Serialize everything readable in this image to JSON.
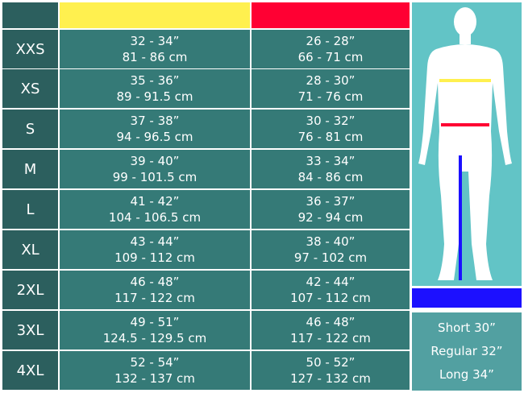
{
  "colors": {
    "chest": "#fff04f",
    "waist": "#ff0033",
    "inseam": "#1c10ff"
  },
  "rows": [
    {
      "size": "XXS",
      "chest_in": "32 - 34”",
      "chest_cm": "81 - 86 cm",
      "waist_in": "26 - 28”",
      "waist_cm": "66 - 71 cm"
    },
    {
      "size": "XS",
      "chest_in": "35 - 36”",
      "chest_cm": "89 - 91.5 cm",
      "waist_in": "28 - 30”",
      "waist_cm": "71 - 76 cm"
    },
    {
      "size": "S",
      "chest_in": "37 - 38”",
      "chest_cm": "94 - 96.5 cm",
      "waist_in": "30 - 32”",
      "waist_cm": "76 - 81 cm"
    },
    {
      "size": "M",
      "chest_in": "39 - 40”",
      "chest_cm": "99 - 101.5 cm",
      "waist_in": "33 - 34”",
      "waist_cm": "84 - 86 cm"
    },
    {
      "size": "L",
      "chest_in": "41 - 42”",
      "chest_cm": "104 - 106.5 cm",
      "waist_in": "36 - 37”",
      "waist_cm": "92 - 94 cm"
    },
    {
      "size": "XL",
      "chest_in": "43 - 44”",
      "chest_cm": "109 - 112 cm",
      "waist_in": "38 - 40”",
      "waist_cm": "97 - 102 cm"
    },
    {
      "size": "2XL",
      "chest_in": "46 - 48”",
      "chest_cm": "117 - 122 cm",
      "waist_in": "42 - 44”",
      "waist_cm": "107 - 112 cm"
    },
    {
      "size": "3XL",
      "chest_in": "49 - 51”",
      "chest_cm": "124.5 - 129.5 cm",
      "waist_in": "46 - 48”",
      "waist_cm": "117 - 122 cm"
    },
    {
      "size": "4XL",
      "chest_in": "52 - 54”",
      "chest_cm": "132 - 137 cm",
      "waist_in": "50 - 52”",
      "waist_cm": "127 - 132 cm"
    }
  ],
  "inseam_lengths": [
    "Short 30”",
    "Regular 32”",
    "Long 34”"
  ]
}
